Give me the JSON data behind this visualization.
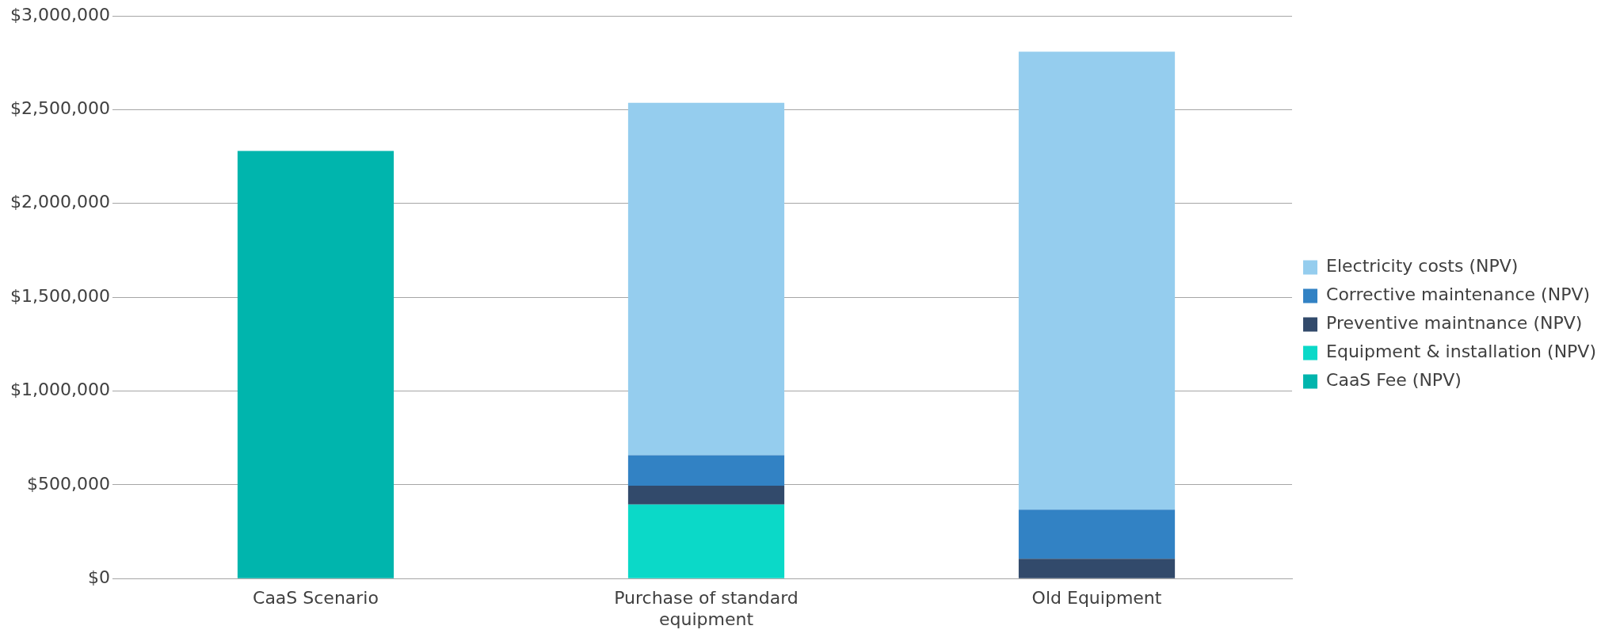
{
  "chart_data": {
    "type": "bar",
    "stacked": true,
    "categories": [
      "CaaS Scenario",
      "Purchase of standard equipment",
      "Old Equipment"
    ],
    "series": [
      {
        "name": "CaaS Fee (NPV)",
        "color": "#00b5ad",
        "values": [
          2280000,
          null,
          null
        ]
      },
      {
        "name": "Equipment & installation (NPV)",
        "color": "#0bd9c8",
        "values": [
          null,
          395000,
          null
        ]
      },
      {
        "name": "Preventive maintnance (NPV)",
        "color": "#324a6b",
        "values": [
          null,
          100000,
          105000
        ]
      },
      {
        "name": "Corrective maintenance (NPV)",
        "color": "#3282c4",
        "values": [
          null,
          163000,
          262000
        ]
      },
      {
        "name": "Electricity costs (NPV)",
        "color": "#95cdee",
        "values": [
          null,
          1878000,
          2442000
        ]
      }
    ],
    "ylim": [
      0,
      3000000
    ],
    "yticks": [
      {
        "value": 0,
        "label": "$0"
      },
      {
        "value": 500000,
        "label": "$500,000"
      },
      {
        "value": 1000000,
        "label": "$1,000,000"
      },
      {
        "value": 1500000,
        "label": "$1,500,000"
      },
      {
        "value": 2000000,
        "label": "$2,000,000"
      },
      {
        "value": 2500000,
        "label": "$2,500,000"
      },
      {
        "value": 3000000,
        "label": "$3,000,000"
      }
    ],
    "grid": "y",
    "legend": "right"
  }
}
